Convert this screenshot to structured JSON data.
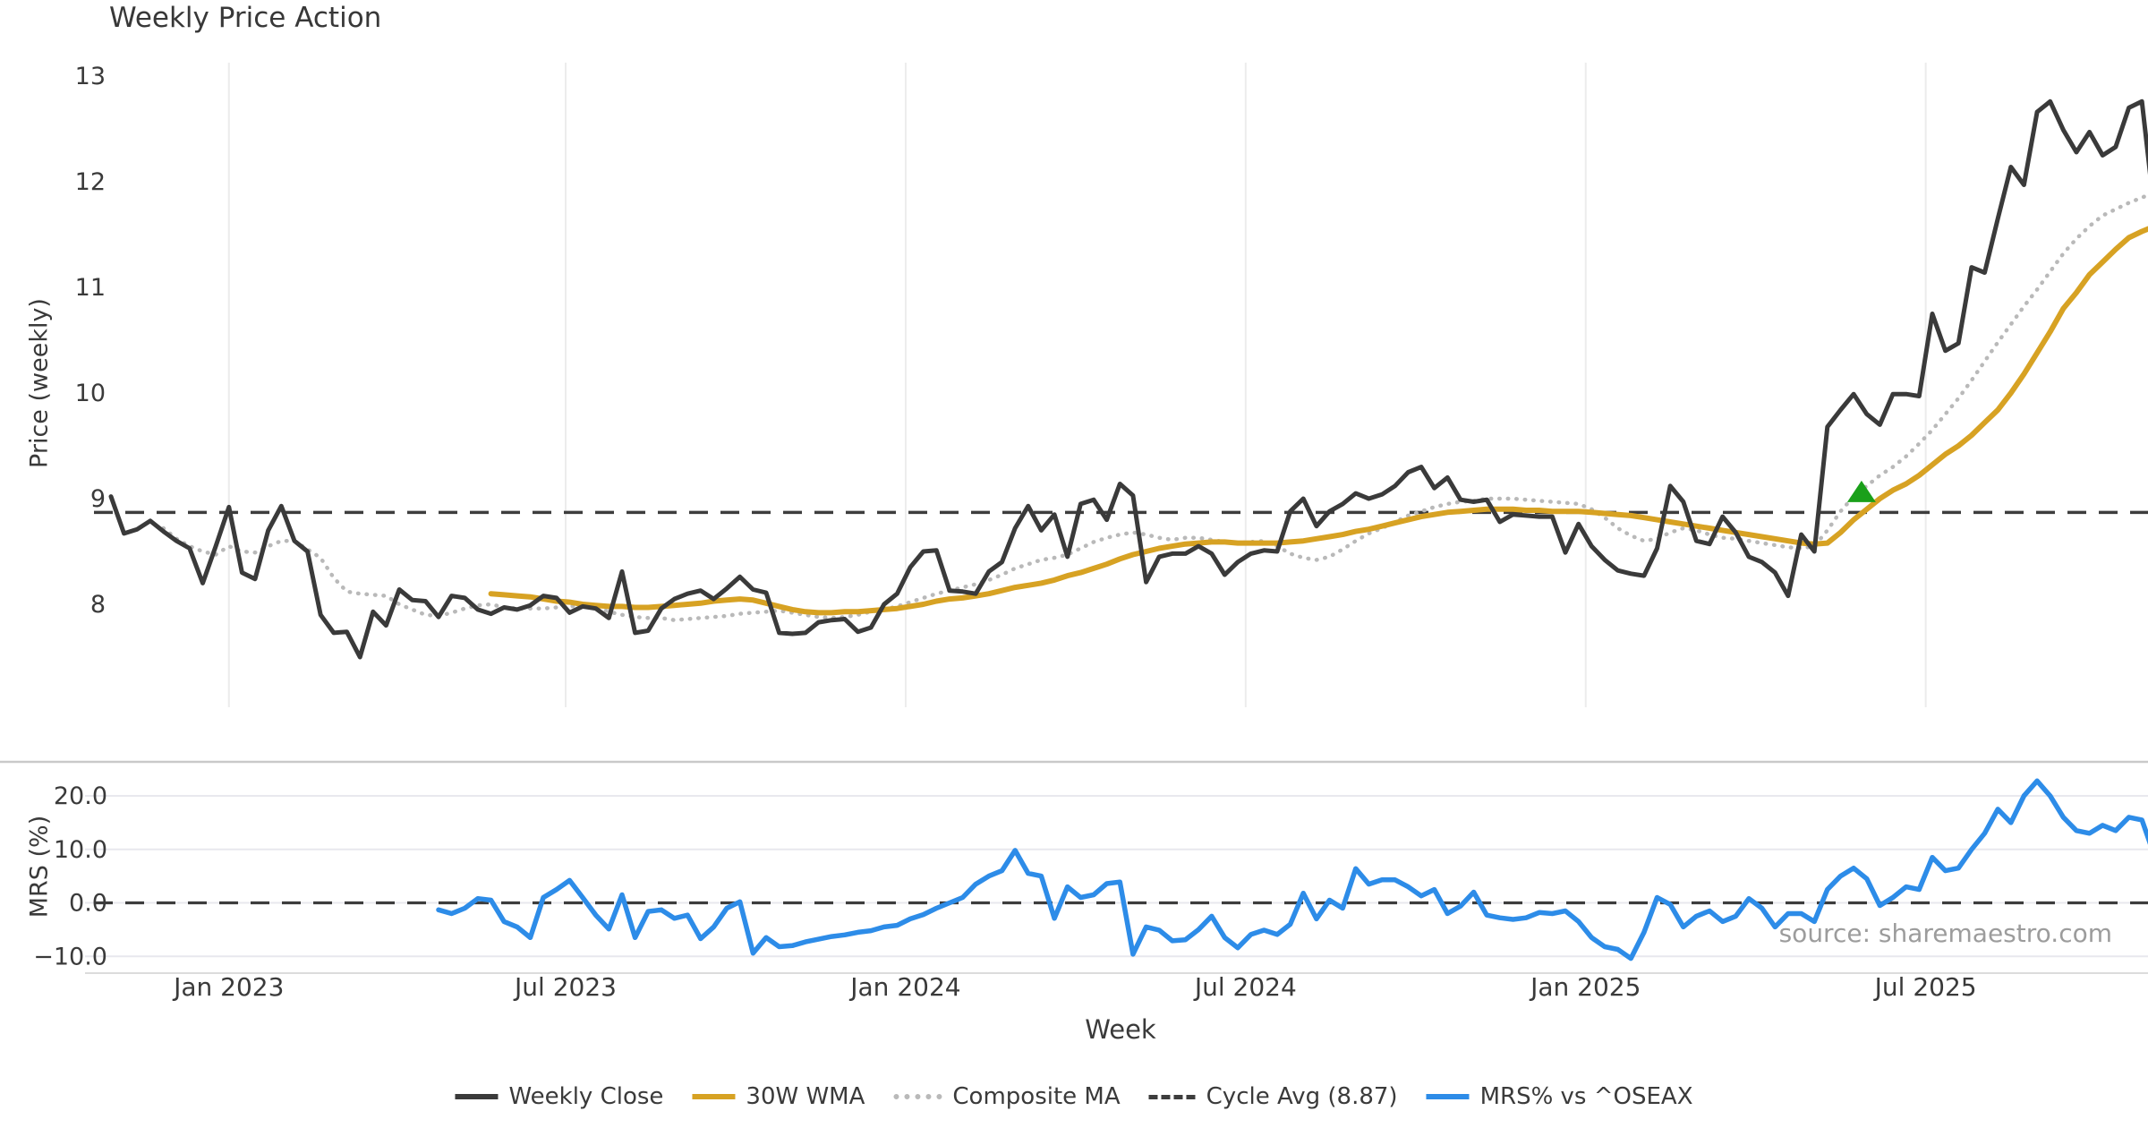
{
  "title": "Weekly Price Action",
  "source_note": "source: sharemaestro.com",
  "legend": [
    {
      "label": "Weekly Close",
      "color": "#3a3a3a",
      "style": "solid"
    },
    {
      "label": "30W WMA",
      "color": "#d7a223",
      "style": "solid"
    },
    {
      "label": "Composite MA",
      "color": "#b9b9b9",
      "style": "dotted"
    },
    {
      "label": "Cycle Avg (8.87)",
      "color": "#3d3d3d",
      "style": "dashed"
    },
    {
      "label": "MRS% vs ^OSEAX",
      "color": "#2d8ce8",
      "style": "solid"
    }
  ],
  "chart_data": {
    "type": "line",
    "title": "Weekly Price Action",
    "x_label": "Week",
    "x_unit": "week_index_from_first_point",
    "x_ticks": [
      {
        "week": 9.0,
        "label": "Jan 2023"
      },
      {
        "week": 34.7,
        "label": "Jul 2023"
      },
      {
        "week": 60.65,
        "label": "Jan 2024"
      },
      {
        "week": 86.6,
        "label": "Jul 2024"
      },
      {
        "week": 112.55,
        "label": "Jan 2025"
      },
      {
        "week": 138.5,
        "label": "Jul 2025"
      }
    ],
    "panels": [
      {
        "y_label": "Price (weekly)",
        "ylim": [
          7.07,
          13.13
        ],
        "y_ticks": [
          {
            "v": 8,
            "label": "8"
          },
          {
            "v": 9,
            "label": "9"
          },
          {
            "v": 10,
            "label": "10"
          },
          {
            "v": 11,
            "label": "11"
          },
          {
            "v": 12,
            "label": "12"
          },
          {
            "v": 13,
            "label": "13"
          }
        ],
        "cycle_avg": 8.87,
        "signal_marker": {
          "week": 133.6,
          "price": 9.06,
          "shape": "triangle-up",
          "color": "#1aa01a"
        },
        "series": [
          {
            "name": "Composite MA",
            "color": "#b9b9b9",
            "style": "dotted",
            "width": 4.5,
            "start_week": 4,
            "values": [
              8.72,
              8.62,
              8.55,
              8.5,
              8.47,
              8.55,
              8.5,
              8.49,
              8.55,
              8.6,
              8.6,
              8.52,
              8.44,
              8.25,
              8.12,
              8.1,
              8.09,
              8.08,
              8.0,
              7.95,
              7.9,
              7.89,
              7.92,
              7.96,
              7.99,
              8.0,
              7.97,
              7.96,
              7.96,
              7.96,
              7.97,
              7.98,
              7.99,
              7.97,
              7.93,
              7.9,
              7.88,
              7.87,
              7.87,
              7.85,
              7.86,
              7.87,
              7.88,
              7.89,
              7.91,
              7.92,
              7.93,
              7.94,
              7.92,
              7.9,
              7.88,
              7.87,
              7.88,
              7.9,
              7.93,
              7.95,
              7.98,
              8.02,
              8.06,
              8.1,
              8.13,
              8.16,
              8.19,
              8.23,
              8.28,
              8.34,
              8.38,
              8.42,
              8.44,
              8.47,
              8.53,
              8.59,
              8.63,
              8.66,
              8.68,
              8.66,
              8.63,
              8.61,
              8.63,
              8.63,
              8.61,
              8.59,
              8.58,
              8.59,
              8.6,
              8.55,
              8.48,
              8.44,
              8.42,
              8.45,
              8.52,
              8.6,
              8.67,
              8.72,
              8.78,
              8.84,
              8.88,
              8.92,
              8.95,
              8.97,
              8.98,
              9.0,
              9.0,
              9.0,
              8.99,
              8.98,
              8.97,
              8.96,
              8.95,
              8.9,
              8.82,
              8.72,
              8.65,
              8.6,
              8.62,
              8.68,
              8.72,
              8.7,
              8.66,
              8.63,
              8.62,
              8.6,
              8.58,
              8.56,
              8.54,
              8.53,
              8.55,
              8.7,
              8.88,
              9.02,
              9.12,
              9.22,
              9.3,
              9.4,
              9.52,
              9.65,
              9.8,
              9.95,
              10.12,
              10.3,
              10.48,
              10.65,
              10.82,
              10.98,
              11.15,
              11.32,
              11.46,
              11.58,
              11.68,
              11.74,
              11.8,
              11.85,
              11.9
            ]
          },
          {
            "name": "30W WMA",
            "color": "#d7a223",
            "style": "solid",
            "width": 6,
            "start_week": 29,
            "values": [
              8.1,
              8.09,
              8.08,
              8.07,
              8.05,
              8.03,
              8.02,
              8.0,
              7.99,
              7.98,
              7.98,
              7.97,
              7.97,
              7.98,
              7.99,
              8.0,
              8.01,
              8.03,
              8.04,
              8.05,
              8.04,
              8.01,
              7.98,
              7.95,
              7.93,
              7.92,
              7.92,
              7.93,
              7.93,
              7.94,
              7.95,
              7.96,
              7.98,
              8.0,
              8.03,
              8.05,
              8.06,
              8.08,
              8.1,
              8.13,
              8.16,
              8.18,
              8.2,
              8.23,
              8.27,
              8.3,
              8.34,
              8.38,
              8.43,
              8.47,
              8.5,
              8.53,
              8.55,
              8.57,
              8.58,
              8.59,
              8.59,
              8.58,
              8.58,
              8.58,
              8.58,
              8.59,
              8.6,
              8.62,
              8.64,
              8.66,
              8.69,
              8.71,
              8.74,
              8.77,
              8.8,
              8.83,
              8.85,
              8.87,
              8.88,
              8.89,
              8.9,
              8.9,
              8.9,
              8.89,
              8.89,
              8.88,
              8.88,
              8.88,
              8.87,
              8.86,
              8.85,
              8.84,
              8.82,
              8.8,
              8.78,
              8.76,
              8.74,
              8.72,
              8.7,
              8.68,
              8.66,
              8.64,
              8.62,
              8.6,
              8.58,
              8.57,
              8.58,
              8.68,
              8.8,
              8.9,
              9.0,
              9.08,
              9.14,
              9.22,
              9.32,
              9.42,
              9.5,
              9.6,
              9.72,
              9.84,
              10.0,
              10.18,
              10.38,
              10.58,
              10.8,
              10.95,
              11.12,
              11.24,
              11.36,
              11.47,
              11.53,
              11.58
            ]
          },
          {
            "name": "Weekly Close",
            "color": "#3a3a3a",
            "style": "solid",
            "width": 5,
            "start_week": 0,
            "values": [
              9.02,
              8.67,
              8.71,
              8.79,
              8.69,
              8.6,
              8.53,
              8.2,
              8.55,
              8.92,
              8.3,
              8.24,
              8.7,
              8.93,
              8.6,
              8.5,
              7.9,
              7.73,
              7.74,
              7.5,
              7.93,
              7.8,
              8.14,
              8.04,
              8.03,
              7.88,
              8.08,
              8.06,
              7.95,
              7.91,
              7.97,
              7.95,
              7.99,
              8.08,
              8.06,
              7.92,
              7.98,
              7.96,
              7.87,
              8.31,
              7.73,
              7.75,
              7.96,
              8.05,
              8.1,
              8.13,
              8.05,
              8.15,
              8.26,
              8.14,
              8.11,
              7.73,
              7.72,
              7.73,
              7.83,
              7.85,
              7.86,
              7.74,
              7.78,
              8.0,
              8.1,
              8.35,
              8.5,
              8.51,
              8.13,
              8.12,
              8.1,
              8.31,
              8.4,
              8.72,
              8.93,
              8.7,
              8.85,
              8.45,
              8.95,
              8.99,
              8.8,
              9.14,
              9.03,
              8.21,
              8.45,
              8.48,
              8.48,
              8.55,
              8.48,
              8.28,
              8.4,
              8.48,
              8.51,
              8.5,
              8.88,
              9.0,
              8.74,
              8.88,
              8.95,
              9.05,
              9.0,
              9.04,
              9.12,
              9.25,
              9.3,
              9.1,
              9.2,
              8.99,
              8.97,
              8.99,
              8.78,
              8.85,
              8.84,
              8.83,
              8.83,
              8.49,
              8.76,
              8.55,
              8.42,
              8.32,
              8.29,
              8.27,
              8.53,
              9.12,
              8.97,
              8.6,
              8.57,
              8.83,
              8.68,
              8.45,
              8.4,
              8.3,
              8.08,
              8.66,
              8.5,
              9.68,
              9.84,
              9.99,
              9.8,
              9.7,
              9.99,
              9.99,
              9.97,
              10.75,
              10.4,
              10.47,
              11.19,
              11.14,
              11.65,
              12.14,
              11.97,
              12.66,
              12.76,
              12.49,
              12.28,
              12.47,
              12.25,
              12.33,
              12.7,
              12.76,
              11.67
            ]
          }
        ]
      },
      {
        "y_label": "MRS (%)",
        "ylim": [
          -13,
          26.4
        ],
        "y_ticks": [
          {
            "v": -10,
            "label": "−10.0"
          },
          {
            "v": 0,
            "label": "0.0"
          },
          {
            "v": 10,
            "label": "10.0"
          },
          {
            "v": 20,
            "label": "20.0"
          }
        ],
        "zero_line": 0,
        "series": [
          {
            "name": "MRS% vs ^OSEAX",
            "color": "#2d8ce8",
            "style": "solid",
            "width": 5.5,
            "start_week": 25,
            "values": [
              -1.3,
              -2.0,
              -1.0,
              0.8,
              0.5,
              -3.5,
              -4.5,
              -6.5,
              1.0,
              2.5,
              4.2,
              1.0,
              -2.3,
              -4.9,
              1.5,
              -6.5,
              -1.6,
              -1.3,
              -2.9,
              -2.3,
              -6.7,
              -4.5,
              -1.0,
              0.2,
              -9.4,
              -6.5,
              -8.2,
              -8.0,
              -7.3,
              -6.8,
              -6.3,
              -6.0,
              -5.5,
              -5.2,
              -4.5,
              -4.2,
              -3.0,
              -2.2,
              -1.0,
              0.0,
              1.0,
              3.5,
              5.0,
              6.0,
              9.8,
              5.5,
              5.0,
              -2.9,
              3.0,
              1.0,
              1.5,
              3.6,
              3.9,
              -9.6,
              -4.5,
              -5.1,
              -7.1,
              -6.9,
              -5.0,
              -2.5,
              -6.5,
              -8.4,
              -5.9,
              -5.1,
              -5.9,
              -4.0,
              1.8,
              -3.0,
              0.5,
              -1.0,
              6.4,
              3.5,
              4.3,
              4.3,
              3.0,
              1.3,
              2.5,
              -2.0,
              -0.6,
              2.0,
              -2.3,
              -2.8,
              -3.1,
              -2.8,
              -1.8,
              -2.0,
              -1.5,
              -3.5,
              -6.5,
              -8.2,
              -8.7,
              -10.4,
              -5.5,
              1.0,
              -0.3,
              -4.5,
              -2.5,
              -1.5,
              -3.5,
              -2.5,
              0.8,
              -1.0,
              -4.5,
              -2.0,
              -2.0,
              -3.5,
              2.5,
              5.0,
              6.5,
              4.5,
              -0.5,
              1.0,
              3.0,
              2.5,
              8.5,
              6.0,
              6.5,
              10.0,
              13.0,
              17.5,
              15.0,
              20.0,
              22.8,
              20.0,
              16.0,
              13.5,
              13.0,
              14.5,
              13.5,
              16.0,
              15.5,
              8.5
            ]
          }
        ]
      }
    ]
  }
}
